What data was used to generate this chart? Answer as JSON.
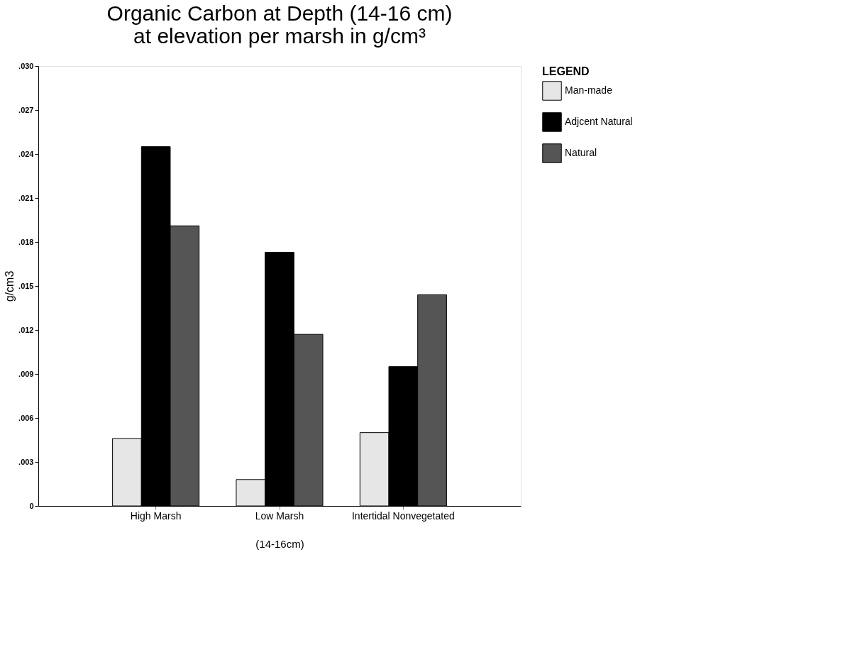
{
  "chart_data": {
    "type": "bar",
    "title": "Organic Carbon at Depth (14-16 cm)",
    "subtitle": "at elevation per marsh in g/cm³",
    "xlabel": "(14-16cm)",
    "ylabel": "g/cm3",
    "legend_title": "LEGEND",
    "categories": [
      "High Marsh",
      "Low Marsh",
      "Intertidal Nonvegetated"
    ],
    "series": [
      {
        "name": "Man-made",
        "color": "#e6e6e6",
        "values": [
          0.0046,
          0.0018,
          0.005
        ]
      },
      {
        "name": "Adjcent Natural",
        "color": "#000000",
        "values": [
          0.0245,
          0.0173,
          0.0095
        ]
      },
      {
        "name": "Natural",
        "color": "#555555",
        "values": [
          0.0191,
          0.0117,
          0.0144
        ]
      }
    ],
    "ylim": [
      0,
      0.03
    ],
    "yticks": [
      0,
      {
        "value": 0.003,
        "label": ".003"
      },
      {
        "value": 0.006,
        "label": ".006"
      },
      {
        "value": 0.009,
        "label": ".009"
      },
      {
        "value": 0.012,
        "label": ".012"
      },
      {
        "value": 0.015,
        "label": ".015"
      },
      {
        "value": 0.018,
        "label": ".018"
      },
      {
        "value": 0.021,
        "label": ".021"
      },
      {
        "value": 0.024,
        "label": ".024"
      },
      {
        "value": 0.027,
        "label": ".027"
      },
      {
        "value": 0.03,
        "label": ".030"
      }
    ],
    "grid": false,
    "legend": "top right"
  }
}
